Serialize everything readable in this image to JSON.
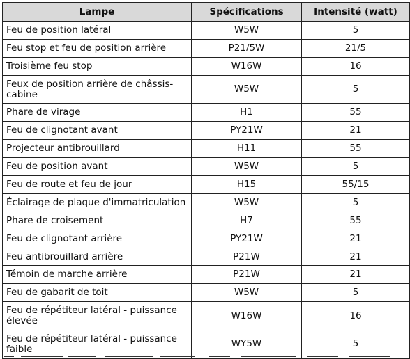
{
  "table": {
    "headers": [
      "Lampe",
      "Spécifications",
      "Intensité (watt)"
    ],
    "rows": [
      [
        "Feu de position latéral",
        "W5W",
        "5"
      ],
      [
        "Feu stop et feu de position arrière",
        "P21/5W",
        "21/5"
      ],
      [
        "Troisième feu stop",
        "W16W",
        "16"
      ],
      [
        "Feux de position arrière de châssis-cabine",
        "W5W",
        "5"
      ],
      [
        "Phare de virage",
        "H1",
        "55"
      ],
      [
        "Feu de clignotant avant",
        "PY21W",
        "21"
      ],
      [
        "Projecteur antibrouillard",
        "H11",
        "55"
      ],
      [
        "Feu de position avant",
        "W5W",
        "5"
      ],
      [
        "Feu de route et feu de jour",
        "H15",
        "55/15"
      ],
      [
        "Éclairage de plaque d'immatriculation",
        "W5W",
        "5"
      ],
      [
        "Phare de croisement",
        "H7",
        "55"
      ],
      [
        "Feu de clignotant arrière",
        "PY21W",
        "21"
      ],
      [
        "Feu antibrouillard arrière",
        "P21W",
        "21"
      ],
      [
        "Témoin de marche arrière",
        "P21W",
        "21"
      ],
      [
        "Feu de gabarit de toit",
        "W5W",
        "5"
      ],
      [
        "Feu de répétiteur latéral - puissance élevée",
        "W16W",
        "16"
      ],
      [
        "Feu de répétiteur latéral - puissance faible",
        "WY5W",
        "5"
      ]
    ]
  }
}
